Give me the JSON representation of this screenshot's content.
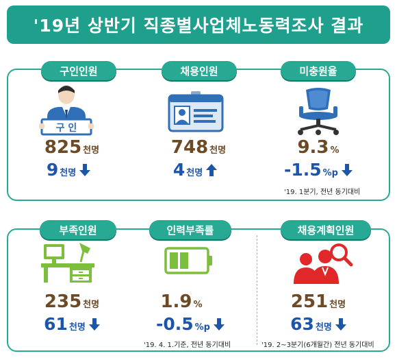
{
  "title": "'19년 상반기 직종별사업체노동력조사 결과",
  "top_panel": {
    "items": [
      {
        "label": "구인인원",
        "value": "825",
        "unit": "천명",
        "change": "9",
        "change_unit": "천명",
        "direction": "down",
        "sign_text": "구 인"
      },
      {
        "label": "채용인원",
        "value": "748",
        "unit": "천명",
        "change": "4",
        "change_unit": "천명",
        "direction": "up"
      },
      {
        "label": "미충원율",
        "value": "9.3",
        "unit": "%",
        "change": "-1.5",
        "change_unit": "%p",
        "direction": "down"
      }
    ],
    "note": "'19. 1분기, 전년 동기대비"
  },
  "bottom_panel": {
    "items": [
      {
        "label": "부족인원",
        "value": "235",
        "unit": "천명",
        "change": "61",
        "change_unit": "천명",
        "direction": "down"
      },
      {
        "label": "인력부족률",
        "value": "1.9",
        "unit": "%",
        "change": "-0.5",
        "change_unit": "%p",
        "direction": "down"
      },
      {
        "label": "채용계획인원",
        "value": "251",
        "unit": "천명",
        "change": "63",
        "change_unit": "천명",
        "direction": "down"
      }
    ],
    "note_left": "'19. 4. 1.기준, 전년 동기대비",
    "note_right": "'19. 2~3분기(6개월간) 전년 동기대비"
  },
  "colors": {
    "accent": "#27a993",
    "value_brown": "#6b4a25",
    "change_blue": "#1d55a8",
    "icon_blue": "#2f6fb7",
    "icon_green": "#7bbf3c",
    "icon_red": "#e0282a"
  }
}
